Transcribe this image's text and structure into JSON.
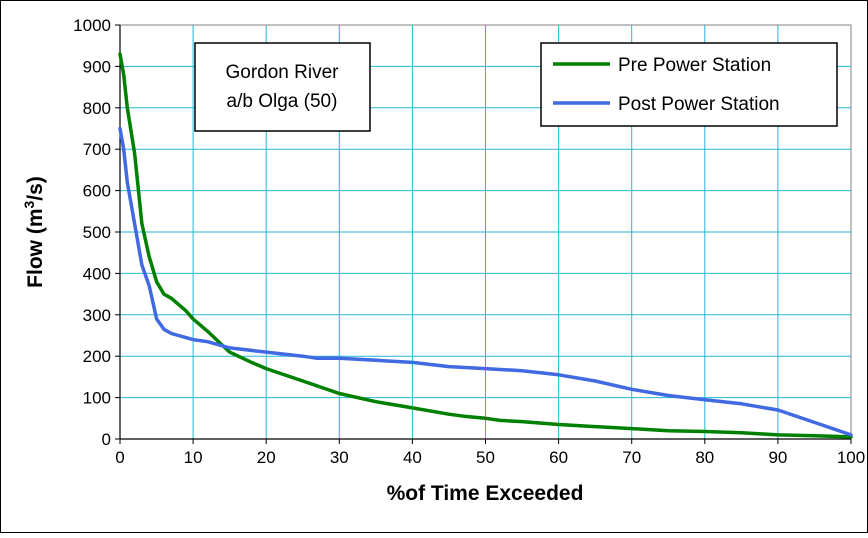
{
  "chart_data": {
    "type": "line",
    "title": "",
    "xlabel": "%of Time Exceeded",
    "ylabel_main": "Flow (m",
    "ylabel_sup": "3",
    "ylabel_end": "/s)",
    "ylabel": "Flow (m3/s)",
    "xlim": [
      0,
      100
    ],
    "ylim": [
      0,
      1000
    ],
    "x_ticks": [
      "0",
      "10",
      "20",
      "30",
      "40",
      "50",
      "60",
      "70",
      "80",
      "90",
      "100"
    ],
    "y_ticks": [
      "0",
      "100",
      "200",
      "300",
      "400",
      "500",
      "600",
      "700",
      "800",
      "900",
      "1000"
    ],
    "grid": true,
    "legend_position": "top-right",
    "annotation_lines": [
      "Gordon River",
      "a/b Olga (50)"
    ],
    "series": [
      {
        "name": "Pre Power Station",
        "color": "#008000",
        "x": [
          0,
          0.5,
          1,
          2,
          3,
          4,
          5,
          6,
          7,
          8,
          9,
          10,
          12,
          15,
          18,
          20,
          25,
          30,
          35,
          40,
          45,
          47,
          50,
          52,
          55,
          60,
          65,
          67,
          70,
          75,
          80,
          85,
          88,
          90,
          95,
          100
        ],
        "y": [
          930,
          880,
          800,
          690,
          520,
          440,
          380,
          350,
          340,
          325,
          310,
          290,
          260,
          210,
          185,
          170,
          140,
          110,
          90,
          75,
          60,
          55,
          50,
          45,
          42,
          35,
          30,
          28,
          25,
          20,
          18,
          15,
          12,
          10,
          8,
          5
        ]
      },
      {
        "name": "Post Power Station",
        "color": "#4169E1",
        "x": [
          0,
          0.5,
          1,
          2,
          3,
          4,
          5,
          6,
          7,
          8,
          9,
          10,
          12,
          15,
          20,
          25,
          27,
          30,
          35,
          40,
          45,
          50,
          55,
          60,
          65,
          70,
          75,
          80,
          85,
          90,
          95,
          100
        ],
        "y": [
          750,
          700,
          620,
          520,
          420,
          370,
          290,
          265,
          255,
          250,
          245,
          240,
          235,
          220,
          210,
          200,
          195,
          195,
          190,
          185,
          175,
          170,
          165,
          155,
          140,
          120,
          105,
          95,
          85,
          70,
          40,
          10
        ]
      }
    ]
  }
}
